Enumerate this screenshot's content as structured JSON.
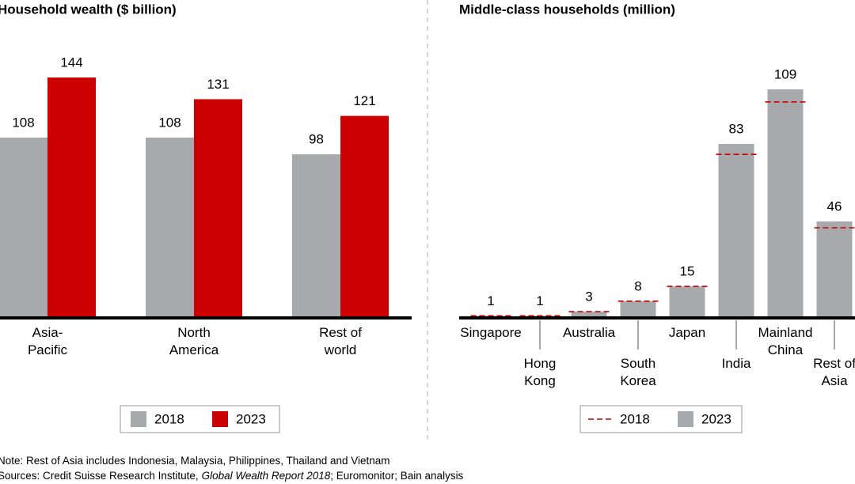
{
  "chart_data": [
    {
      "type": "bar",
      "title": "Household wealth ($ billion)",
      "categories": [
        "Asia-Pacific",
        "North America",
        "Rest of world"
      ],
      "series": [
        {
          "name": "2018",
          "color": "#a7a9ac",
          "values": [
            108,
            108,
            98
          ]
        },
        {
          "name": "2023",
          "color": "#cc0000",
          "values": [
            144,
            131,
            121
          ]
        }
      ]
    },
    {
      "type": "bar",
      "title": "Middle-class households (million)",
      "categories": [
        "Singapore",
        "Hong Kong",
        "Australia",
        "South Korea",
        "Japan",
        "India",
        "Mainland China",
        "Rest of Asia"
      ],
      "series": [
        {
          "name": "2018",
          "color": "#cc0000",
          "mark": "dash",
          "values": [
            1,
            1,
            3,
            8,
            15,
            78,
            103,
            43
          ]
        },
        {
          "name": "2023",
          "color": "#a7a9ac",
          "values": [
            1,
            1,
            3,
            8,
            15,
            83,
            109,
            46
          ]
        }
      ]
    }
  ],
  "note": "Note: Rest of Asia includes Indonesia, Malaysia, Philippines, Thailand and Vietnam",
  "sources": [
    "Sources: Credit Suisse Research Institute,",
    "Global Wealth Report 2018",
    "; Euromonitor; Bain analysis"
  ]
}
